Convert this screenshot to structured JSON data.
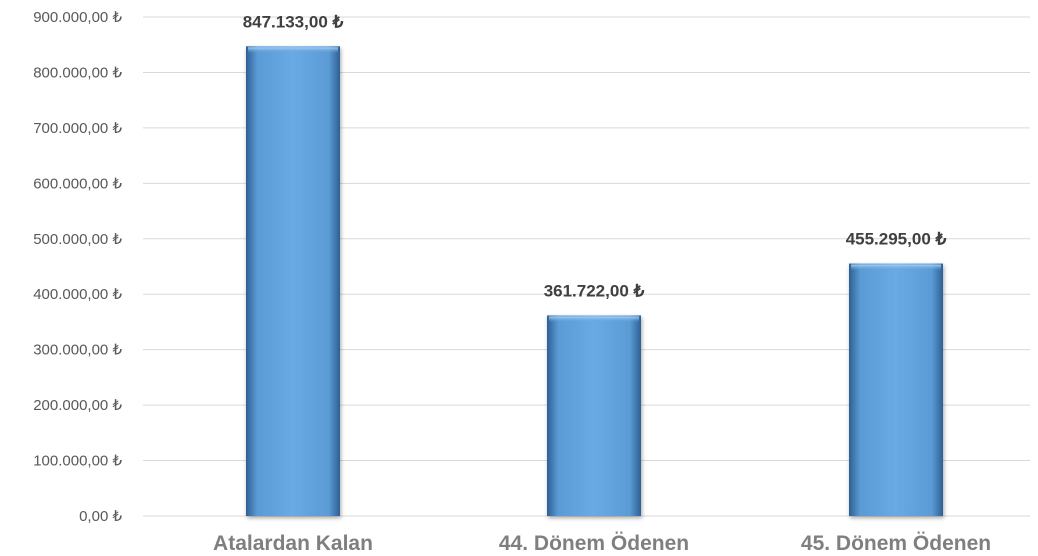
{
  "chart_data": {
    "type": "bar",
    "categories": [
      "Atalardan Kalan",
      "44. Dönem Ödenen",
      "45. Dönem Ödenen"
    ],
    "values": [
      847133,
      361722,
      455295
    ],
    "data_labels": [
      "847.133,00 ₺",
      "361.722,00 ₺",
      "455.295,00 ₺"
    ],
    "y_tick_values": [
      0,
      100000,
      200000,
      300000,
      400000,
      500000,
      600000,
      700000,
      800000,
      900000
    ],
    "y_tick_labels": [
      "0,00 ₺",
      "100.000,00 ₺",
      "200.000,00 ₺",
      "300.000,00 ₺",
      "400.000,00 ₺",
      "500.000,00 ₺",
      "600.000,00 ₺",
      "700.000,00 ₺",
      "800.000,00 ₺",
      "900.000,00 ₺"
    ],
    "ylim": [
      0,
      900000
    ],
    "grid": true,
    "legend": "none",
    "title": "",
    "xlabel": "",
    "ylabel": "",
    "bar_color": "#5b9bd5"
  }
}
